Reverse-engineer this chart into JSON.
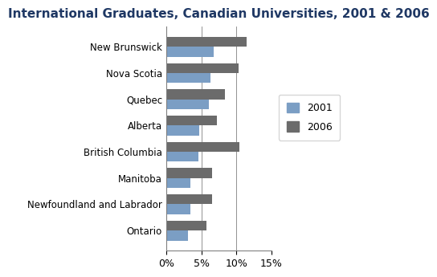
{
  "title": "International Graduates, Canadian Universities, 2001 & 2006",
  "provinces": [
    "New Brunswick",
    "Nova Scotia",
    "Quebec",
    "Alberta",
    "British Columbia",
    "Manitoba",
    "Newfoundland and Labrador",
    "Ontario"
  ],
  "values_2001": [
    6.8,
    6.3,
    6.1,
    4.7,
    4.6,
    3.5,
    3.5,
    3.1
  ],
  "values_2006": [
    11.5,
    10.3,
    8.4,
    7.2,
    10.4,
    6.5,
    6.5,
    5.7
  ],
  "color_2001": "#7B9EC4",
  "color_2006": "#6B6B6B",
  "xlim": [
    0,
    15
  ],
  "xtick_values": [
    0,
    5,
    10,
    15
  ],
  "xtick_labels": [
    "0%",
    "5%",
    "10%",
    "15%"
  ],
  "bar_height": 0.38,
  "legend_labels": [
    "2001",
    "2006"
  ],
  "title_fontsize": 11,
  "label_fontsize": 8.5,
  "tick_fontsize": 9
}
